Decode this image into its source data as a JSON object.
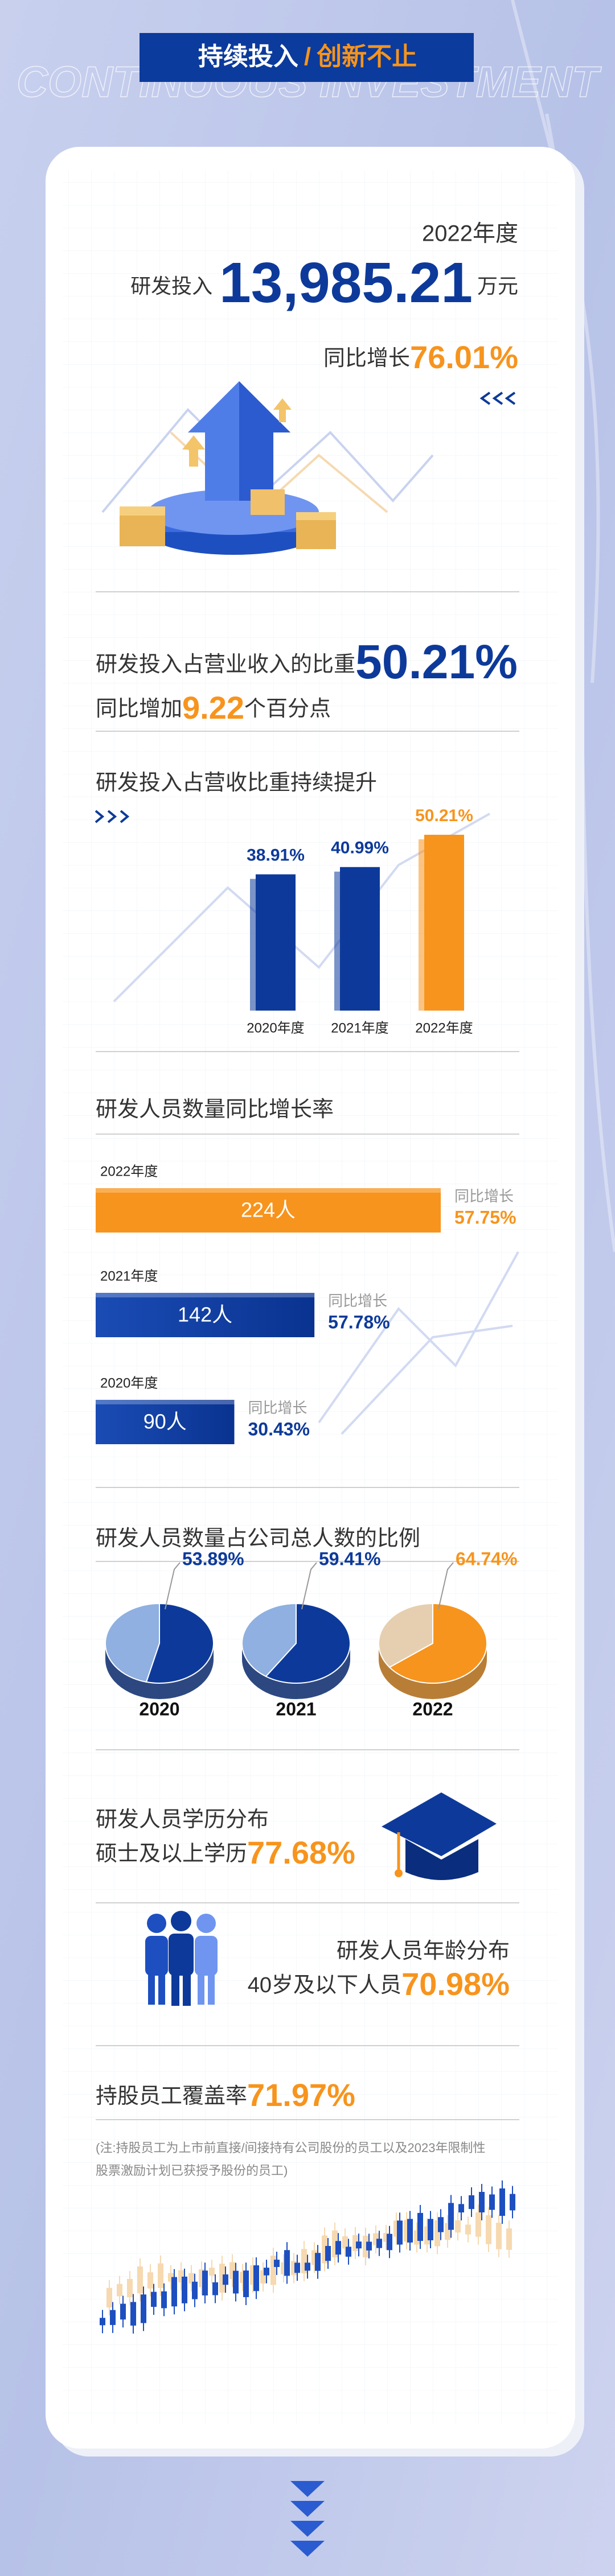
{
  "header": {
    "title_left": "持续投入",
    "divider": "/",
    "title_right": "创新不止",
    "watermark": "CONTINUOUS INVESTMENT"
  },
  "rd_investment": {
    "year": "2022年度",
    "label": "研发投入",
    "amount": "13,985.21",
    "unit": "万元",
    "growth_label": "同比增长",
    "growth": "76.01%"
  },
  "rd_ratio": {
    "label": "研发投入占营业收入的比重",
    "value": "50.21%",
    "change_prefix": "同比增加",
    "change": "9.22",
    "change_suffix": "个百分点"
  },
  "ratio_chart": {
    "type": "bar",
    "title": "研发投入占营收比重持续提升",
    "categories": [
      "2020年度",
      "2021年度",
      "2022年度"
    ],
    "values": [
      38.91,
      40.99,
      50.21
    ],
    "value_labels": [
      "38.91%",
      "40.99%",
      "50.21%"
    ],
    "colors": [
      "#0d3a9a",
      "#0d3a9a",
      "#f7941d"
    ]
  },
  "staff_chart": {
    "type": "hbar",
    "title": "研发人员数量同比增长率",
    "categories": [
      "2022年度",
      "2021年度",
      "2020年度"
    ],
    "values": [
      224,
      142,
      90
    ],
    "value_labels": [
      "224人",
      "142人",
      "90人"
    ],
    "growth_label": "同比增长",
    "growth": [
      57.75,
      57.78,
      30.43
    ],
    "growth_labels": [
      "57.75%",
      "57.78%",
      "30.43%"
    ],
    "colors": [
      "#f7941d",
      "#0d3a9a",
      "#0d3a9a"
    ]
  },
  "staff_share": {
    "type": "pie",
    "title": "研发人员数量占公司总人数的比例",
    "categories": [
      "2020",
      "2021",
      "2022"
    ],
    "values": [
      53.89,
      59.41,
      64.74
    ],
    "value_labels": [
      "53.89%",
      "59.41%",
      "64.74%"
    ],
    "colors": [
      "#0d3a9a",
      "#0d3a9a",
      "#f7941d"
    ],
    "rest_colors": [
      "#8fb0e0",
      "#8fb0e0",
      "#e6cfb0"
    ]
  },
  "education": {
    "title": "研发人员学历分布",
    "label": "硕士及以上学历",
    "value": "77.68%"
  },
  "age": {
    "title": "研发人员年龄分布",
    "label": "40岁及以下人员",
    "value": "70.98%"
  },
  "shareholding": {
    "label": "持股员工覆盖率",
    "value": "71.97%",
    "note_lines": [
      "(注:持股员工为上市前直接/间接持有公司股份的员工以及2023年限制性",
      "股票激励计划已获授予股份的员工)"
    ]
  }
}
